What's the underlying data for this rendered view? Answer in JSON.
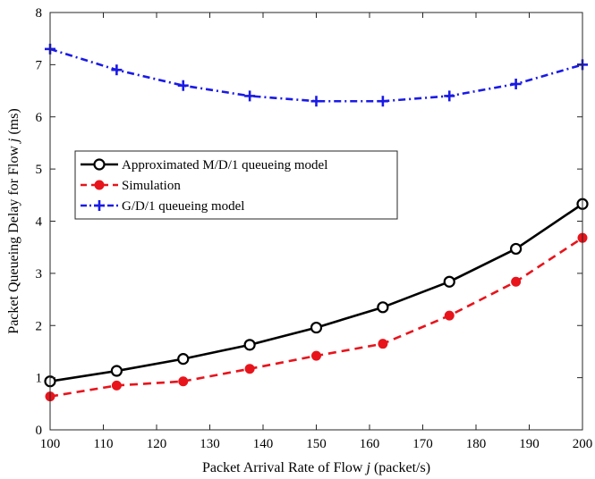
{
  "chart_data": {
    "type": "line",
    "xlabel": "Packet Arrival Rate of Flow j (packet/s)",
    "xlabel_parts": [
      "Packet Arrival Rate of Flow ",
      "j",
      " (packet/s)"
    ],
    "ylabel": "Packet Queueing Delay for Flow j (ms)",
    "ylabel_parts": [
      "Packet Queueing Delay for Flow ",
      "j",
      " (ms)"
    ],
    "xlim": [
      100,
      200
    ],
    "ylim": [
      0,
      8
    ],
    "xticks": [
      100,
      110,
      120,
      130,
      140,
      150,
      160,
      170,
      180,
      190,
      200
    ],
    "yticks": [
      0,
      1,
      2,
      3,
      4,
      5,
      6,
      7,
      8
    ],
    "grid": false,
    "legend_position": "left-middle",
    "x": [
      100,
      112.5,
      125,
      137.5,
      150,
      162.5,
      175,
      187.5,
      200
    ],
    "series": [
      {
        "name": "Approximated M/D/1 queueing model",
        "color": "#000000",
        "marker": "circle-open",
        "line": "solid",
        "values": [
          0.93,
          1.13,
          1.36,
          1.63,
          1.96,
          2.35,
          2.84,
          3.47,
          4.33
        ]
      },
      {
        "name": "Simulation",
        "color": "#e8141c",
        "marker": "circle-filled",
        "line": "dashed",
        "values": [
          0.64,
          0.85,
          0.93,
          1.17,
          1.42,
          1.65,
          2.19,
          2.84,
          3.68
        ]
      },
      {
        "name": "G/D/1 queueing model",
        "color": "#1a1ae6",
        "marker": "plus",
        "line": "dashdot",
        "values": [
          7.3,
          6.9,
          6.6,
          6.4,
          6.3,
          6.3,
          6.4,
          6.63,
          7.0
        ]
      }
    ]
  }
}
